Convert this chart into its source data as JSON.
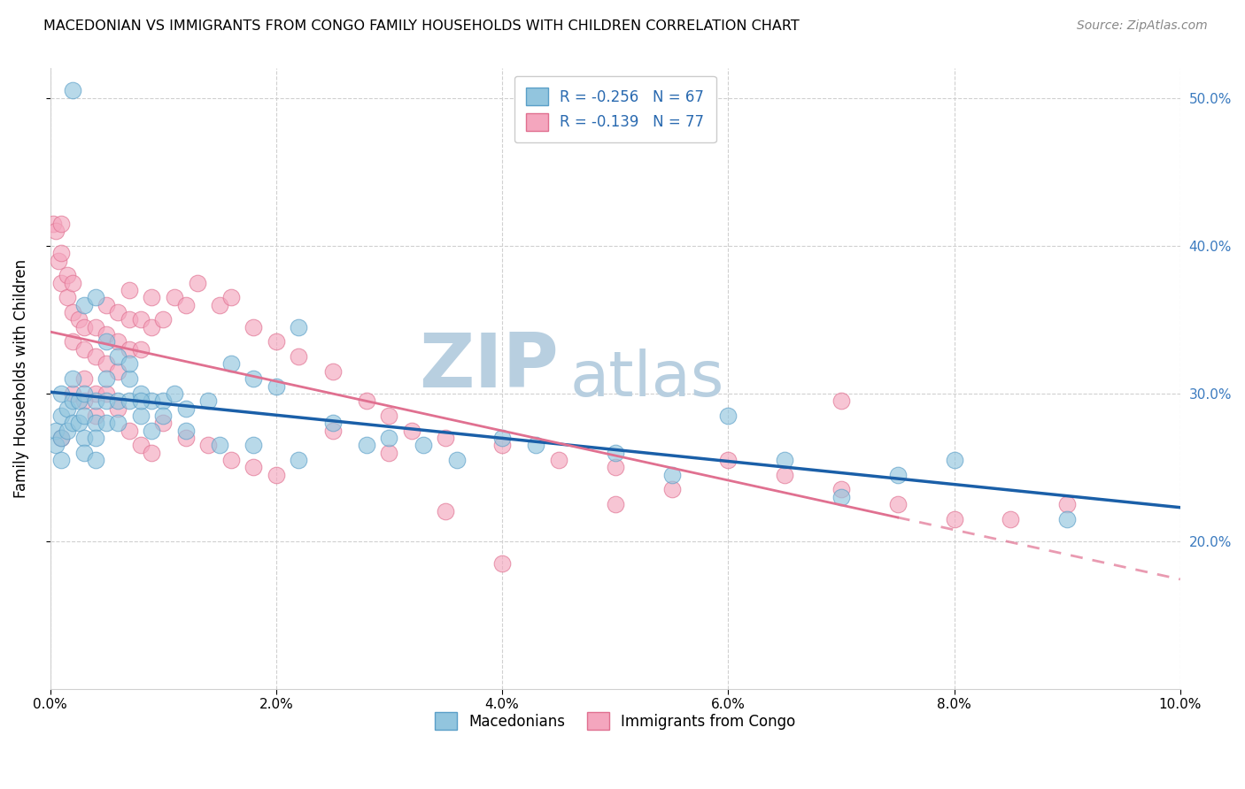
{
  "title": "MACEDONIAN VS IMMIGRANTS FROM CONGO FAMILY HOUSEHOLDS WITH CHILDREN CORRELATION CHART",
  "source_text": "Source: ZipAtlas.com",
  "ylabel": "Family Households with Children",
  "xlim": [
    0.0,
    0.1
  ],
  "ylim": [
    0.1,
    0.52
  ],
  "xtick_labels": [
    "0.0%",
    "2.0%",
    "4.0%",
    "6.0%",
    "8.0%",
    "10.0%"
  ],
  "xtick_values": [
    0.0,
    0.02,
    0.04,
    0.06,
    0.08,
    0.1
  ],
  "ytick_labels_right": [
    "20.0%",
    "30.0%",
    "40.0%",
    "50.0%"
  ],
  "ytick_values": [
    0.2,
    0.3,
    0.4,
    0.5
  ],
  "legend_r1": "-0.256",
  "legend_n1": "67",
  "legend_r2": "-0.139",
  "legend_n2": "77",
  "color_blue": "#92c5de",
  "color_pink": "#f4a6be",
  "color_blue_edge": "#5a9fc8",
  "color_pink_edge": "#e07090",
  "trend_blue": "#1a5fa8",
  "trend_pink": "#e07090",
  "watermark": "ZIPatlas",
  "watermark_color_zip": "#b8cfe0",
  "watermark_color_atlas": "#b8cfe0",
  "blue_x": [
    0.0005,
    0.0005,
    0.001,
    0.001,
    0.001,
    0.001,
    0.0015,
    0.0015,
    0.002,
    0.002,
    0.002,
    0.0025,
    0.0025,
    0.003,
    0.003,
    0.003,
    0.003,
    0.004,
    0.004,
    0.004,
    0.004,
    0.005,
    0.005,
    0.005,
    0.006,
    0.006,
    0.007,
    0.007,
    0.008,
    0.008,
    0.009,
    0.01,
    0.011,
    0.012,
    0.014,
    0.016,
    0.018,
    0.02,
    0.022,
    0.025,
    0.028,
    0.03,
    0.033,
    0.036,
    0.04,
    0.043,
    0.05,
    0.055,
    0.06,
    0.065,
    0.07,
    0.075,
    0.08,
    0.09,
    0.002,
    0.003,
    0.004,
    0.005,
    0.006,
    0.007,
    0.008,
    0.009,
    0.01,
    0.012,
    0.015,
    0.018,
    0.022
  ],
  "blue_y": [
    0.275,
    0.265,
    0.3,
    0.285,
    0.27,
    0.255,
    0.29,
    0.275,
    0.31,
    0.295,
    0.28,
    0.295,
    0.28,
    0.3,
    0.285,
    0.27,
    0.26,
    0.295,
    0.28,
    0.27,
    0.255,
    0.31,
    0.295,
    0.28,
    0.295,
    0.28,
    0.31,
    0.295,
    0.3,
    0.285,
    0.295,
    0.295,
    0.3,
    0.29,
    0.295,
    0.32,
    0.31,
    0.305,
    0.345,
    0.28,
    0.265,
    0.27,
    0.265,
    0.255,
    0.27,
    0.265,
    0.26,
    0.245,
    0.285,
    0.255,
    0.23,
    0.245,
    0.255,
    0.215,
    0.505,
    0.36,
    0.365,
    0.335,
    0.325,
    0.32,
    0.295,
    0.275,
    0.285,
    0.275,
    0.265,
    0.265,
    0.255
  ],
  "pink_x": [
    0.0003,
    0.0005,
    0.0007,
    0.001,
    0.001,
    0.001,
    0.0015,
    0.0015,
    0.002,
    0.002,
    0.002,
    0.0025,
    0.003,
    0.003,
    0.003,
    0.004,
    0.004,
    0.004,
    0.005,
    0.005,
    0.005,
    0.006,
    0.006,
    0.006,
    0.007,
    0.007,
    0.007,
    0.008,
    0.008,
    0.009,
    0.009,
    0.01,
    0.011,
    0.012,
    0.013,
    0.015,
    0.016,
    0.018,
    0.02,
    0.022,
    0.025,
    0.028,
    0.03,
    0.032,
    0.035,
    0.04,
    0.045,
    0.05,
    0.055,
    0.06,
    0.065,
    0.07,
    0.075,
    0.08,
    0.085,
    0.09,
    0.001,
    0.002,
    0.003,
    0.004,
    0.005,
    0.006,
    0.007,
    0.008,
    0.009,
    0.01,
    0.012,
    0.014,
    0.016,
    0.018,
    0.02,
    0.025,
    0.03,
    0.035,
    0.04,
    0.05,
    0.07
  ],
  "pink_y": [
    0.415,
    0.41,
    0.39,
    0.415,
    0.395,
    0.375,
    0.38,
    0.365,
    0.375,
    0.355,
    0.335,
    0.35,
    0.345,
    0.33,
    0.31,
    0.345,
    0.325,
    0.3,
    0.36,
    0.34,
    0.32,
    0.355,
    0.335,
    0.315,
    0.37,
    0.35,
    0.33,
    0.35,
    0.33,
    0.365,
    0.345,
    0.35,
    0.365,
    0.36,
    0.375,
    0.36,
    0.365,
    0.345,
    0.335,
    0.325,
    0.315,
    0.295,
    0.285,
    0.275,
    0.27,
    0.265,
    0.255,
    0.25,
    0.235,
    0.255,
    0.245,
    0.235,
    0.225,
    0.215,
    0.215,
    0.225,
    0.27,
    0.3,
    0.295,
    0.285,
    0.3,
    0.29,
    0.275,
    0.265,
    0.26,
    0.28,
    0.27,
    0.265,
    0.255,
    0.25,
    0.245,
    0.275,
    0.26,
    0.22,
    0.185,
    0.225,
    0.295
  ]
}
